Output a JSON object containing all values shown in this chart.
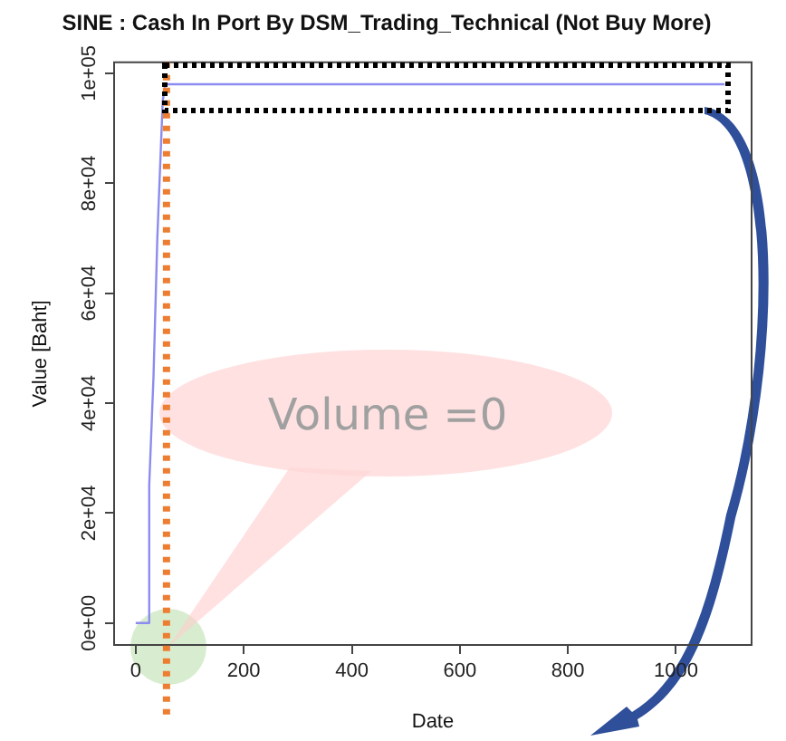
{
  "chart_data": {
    "type": "line",
    "title": "SINE : Cash In Port By DSM_Trading_Technical (Not Buy More)",
    "xlabel": "Date",
    "ylabel": "Value [Baht]",
    "series": [
      {
        "color": "#8c8cf0",
        "x": [
          0,
          24,
          25,
          33,
          40,
          50,
          55,
          1090
        ],
        "values": [
          0,
          0,
          25000,
          45000,
          70000,
          95000,
          98000,
          98000
        ]
      }
    ],
    "xlim": [
      -40,
      1140
    ],
    "xticks": [
      0,
      200,
      400,
      600,
      800,
      1000
    ],
    "ylim": [
      -4000,
      102000
    ],
    "yticks": [
      {
        "value": 0,
        "label": "0e+00"
      },
      {
        "value": 20000,
        "label": "2e+04"
      },
      {
        "value": 40000,
        "label": "4e+04"
      },
      {
        "value": 60000,
        "label": "6e+04"
      },
      {
        "value": 80000,
        "label": "8e+04"
      },
      {
        "value": 100000,
        "label": "1e+05"
      }
    ],
    "ref_lines": [
      {
        "axis": "x",
        "value": 57,
        "color": "#ed7d31",
        "line_style": "dotted"
      }
    ],
    "annotations": [
      "Volume =0"
    ],
    "grid": false,
    "legend": false,
    "marker": "none",
    "line_style": "solid"
  }
}
